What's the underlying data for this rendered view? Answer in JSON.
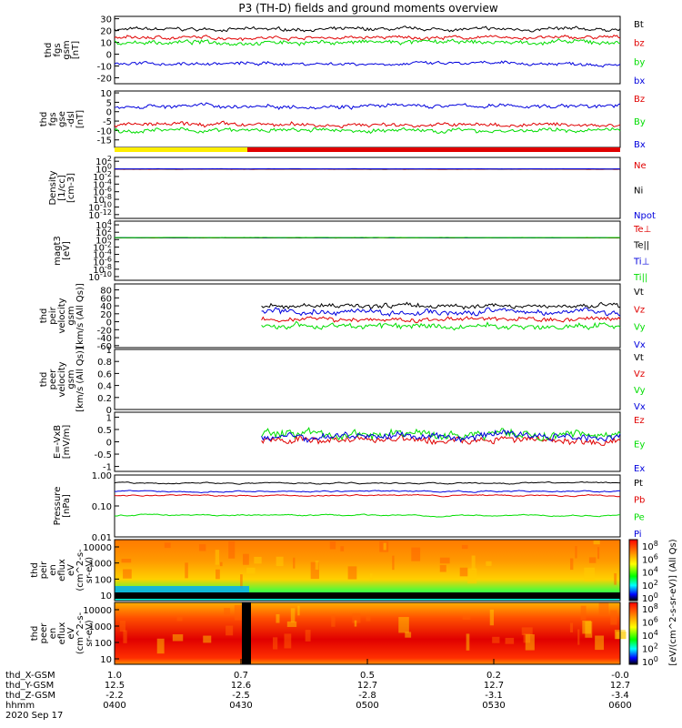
{
  "title": "P3 (TH-D) fields and ground moments overview",
  "colors": {
    "black": "#000000",
    "red": "#e00000",
    "green": "#00dd00",
    "blue": "#0000dd"
  },
  "chart_data": [
    {
      "id": "fgs_gsm",
      "type": "line",
      "ylabel": [
        "thd",
        "fgs",
        "gsm",
        "[nT]"
      ],
      "ylim": [
        -25,
        32
      ],
      "yticks": [
        -20,
        -10,
        0,
        10,
        20,
        30
      ],
      "series": [
        {
          "name": "Bt",
          "color": "black",
          "level": 21,
          "noise": 2
        },
        {
          "name": "bz",
          "color": "red",
          "level": 14,
          "noise": 2
        },
        {
          "name": "by",
          "color": "green",
          "level": 10,
          "noise": 2.5
        },
        {
          "name": "bx",
          "color": "blue",
          "level": -8,
          "noise": 2
        }
      ]
    },
    {
      "id": "fgs_dsl",
      "type": "line",
      "ylabel": [
        "thd",
        "fgs",
        "gse",
        "-dsl",
        "[nT]"
      ],
      "ylim": [
        -19,
        11
      ],
      "yticks": [
        -15,
        -10,
        -5,
        0,
        5,
        10
      ],
      "series": [
        {
          "name": "Bz",
          "color": "red",
          "level": -7,
          "noise": 1.5
        },
        {
          "name": "By",
          "color": "green",
          "level": -10,
          "noise": 1.5
        },
        {
          "name": "Bx",
          "color": "blue",
          "level": 3,
          "noise": 1.5
        }
      ]
    },
    {
      "id": "density",
      "type": "line",
      "scale": "log",
      "ylabel": [
        "Density",
        "[1/cc]",
        "[cm-3]"
      ],
      "ylim_log": [
        -13,
        3
      ],
      "yticks": [
        "10^2",
        "10^0",
        "10^-2",
        "10^-4",
        "10^-6",
        "10^-8",
        "10^-10",
        "10^-12"
      ],
      "series": [
        {
          "name": "Ne",
          "color": "red",
          "level": 0.8
        },
        {
          "name": "Ni",
          "color": "black",
          "level": 0.9
        },
        {
          "name": "Npot",
          "color": "blue",
          "level": 1.0
        }
      ]
    },
    {
      "id": "temperature",
      "type": "line",
      "scale": "log",
      "ylabel": [
        "magt3",
        "[eV]"
      ],
      "ylim_log": [
        -11,
        5
      ],
      "yticks": [
        "10^4",
        "10^2",
        "10^0",
        "10^-2",
        "10^-4",
        "10^-6",
        "10^-8",
        "10^-10"
      ],
      "series": [
        {
          "name": "Te⊥",
          "color": "red",
          "level": 3.0
        },
        {
          "name": "Te||",
          "color": "black",
          "level": 3.2
        },
        {
          "name": "Ti⊥",
          "color": "blue",
          "level": 3.5
        },
        {
          "name": "Ti||",
          "color": "green",
          "level": 3.7
        }
      ]
    },
    {
      "id": "peir_velocity",
      "type": "line",
      "ylabel": [
        "thd",
        "peir",
        "velocity",
        "gsm",
        "[km/s (All Qs)]"
      ],
      "ylim": [
        -65,
        95
      ],
      "yticks": [
        -60,
        -40,
        -20,
        0,
        20,
        40,
        60,
        80
      ],
      "series": [
        {
          "name": "Vt",
          "color": "black",
          "level": 40,
          "noise": 8
        },
        {
          "name": "Vz",
          "color": "red",
          "level": 5,
          "noise": 8
        },
        {
          "name": "Vy",
          "color": "green",
          "level": -10,
          "noise": 10
        },
        {
          "name": "Vx",
          "color": "blue",
          "level": 25,
          "noise": 10
        }
      ]
    },
    {
      "id": "peer_velocity",
      "type": "line",
      "ylabel": [
        "thd",
        "peer",
        "velocity",
        "gsm",
        "[km/s (All Qs)]"
      ],
      "ylim": [
        0,
        1
      ],
      "yticks": [
        0.0,
        0.2,
        0.4,
        0.6,
        0.8,
        1.0
      ],
      "series": [
        {
          "name": "Vt",
          "color": "black"
        },
        {
          "name": "Vz",
          "color": "red"
        },
        {
          "name": "Vy",
          "color": "green"
        },
        {
          "name": "Vx",
          "color": "blue"
        }
      ]
    },
    {
      "id": "efield",
      "type": "line",
      "ylabel": [
        "E=-VxB",
        "[mV/m]"
      ],
      "ylim": [
        -1.2,
        1.2
      ],
      "yticks": [
        -1.0,
        -0.5,
        0.0,
        0.5,
        1.0
      ],
      "series": [
        {
          "name": "Ez",
          "color": "red",
          "level": 0.05,
          "noise": 0.2
        },
        {
          "name": "Ey",
          "color": "green",
          "level": 0.3,
          "noise": 0.25
        },
        {
          "name": "Ex",
          "color": "blue",
          "level": 0.2,
          "noise": 0.2
        }
      ]
    },
    {
      "id": "pressure",
      "type": "line",
      "scale": "log",
      "ylabel": [
        "Pressure",
        "[nPa]"
      ],
      "ylim_log": [
        -2,
        0
      ],
      "yticks": [
        "1.00",
        "0.10",
        "0.01"
      ],
      "series": [
        {
          "name": "Pt",
          "color": "black",
          "level": 0.55
        },
        {
          "name": "Pb",
          "color": "red",
          "level": 0.22
        },
        {
          "name": "Pe",
          "color": "green",
          "level": 0.05
        },
        {
          "name": "Pi",
          "color": "blue",
          "level": 0.3
        }
      ]
    },
    {
      "id": "peir_spec",
      "type": "heatmap",
      "ylabel": [
        "thd",
        "peir",
        "en",
        "eflux",
        "eV",
        "(cm^2-s-",
        "sr-eV)"
      ],
      "yticks": [
        "10000",
        "1000",
        "100",
        "10"
      ]
    },
    {
      "id": "peer_spec",
      "type": "heatmap",
      "ylabel": [
        "thd",
        "peer",
        "en",
        "eflux",
        "eV",
        "(cm^2-s-",
        "sr-eV)"
      ],
      "yticks": [
        "10000",
        "1000",
        "100",
        "10"
      ]
    }
  ],
  "colorbar": {
    "label": "[eV/(cm^2-s-sr-eV)] (All Qs)",
    "ticks_top": [
      "10^8",
      "10^6",
      "10^4",
      "10^2",
      "10^0"
    ],
    "ticks_bottom": [
      "10^8",
      "10^6",
      "10^4",
      "10^2",
      "10^0"
    ]
  },
  "x_axis": {
    "times": [
      "0400",
      "0430",
      "0500",
      "0530",
      "0600"
    ],
    "rows": [
      {
        "label": "thd_X-GSM",
        "values": [
          "1.0",
          "0.7",
          "0.5",
          "0.2",
          "-0.0"
        ]
      },
      {
        "label": "thd_Y-GSM",
        "values": [
          "12.5",
          "12.6",
          "12.7",
          "12.7",
          "12.7"
        ]
      },
      {
        "label": "thd_Z-GSM",
        "values": [
          "-2.2",
          "-2.5",
          "-2.8",
          "-3.1",
          "-3.4"
        ]
      },
      {
        "label": "hhmm",
        "values": [
          "0400",
          "0430",
          "0500",
          "0530",
          "0600"
        ]
      }
    ],
    "date": "2020 Sep 17"
  }
}
